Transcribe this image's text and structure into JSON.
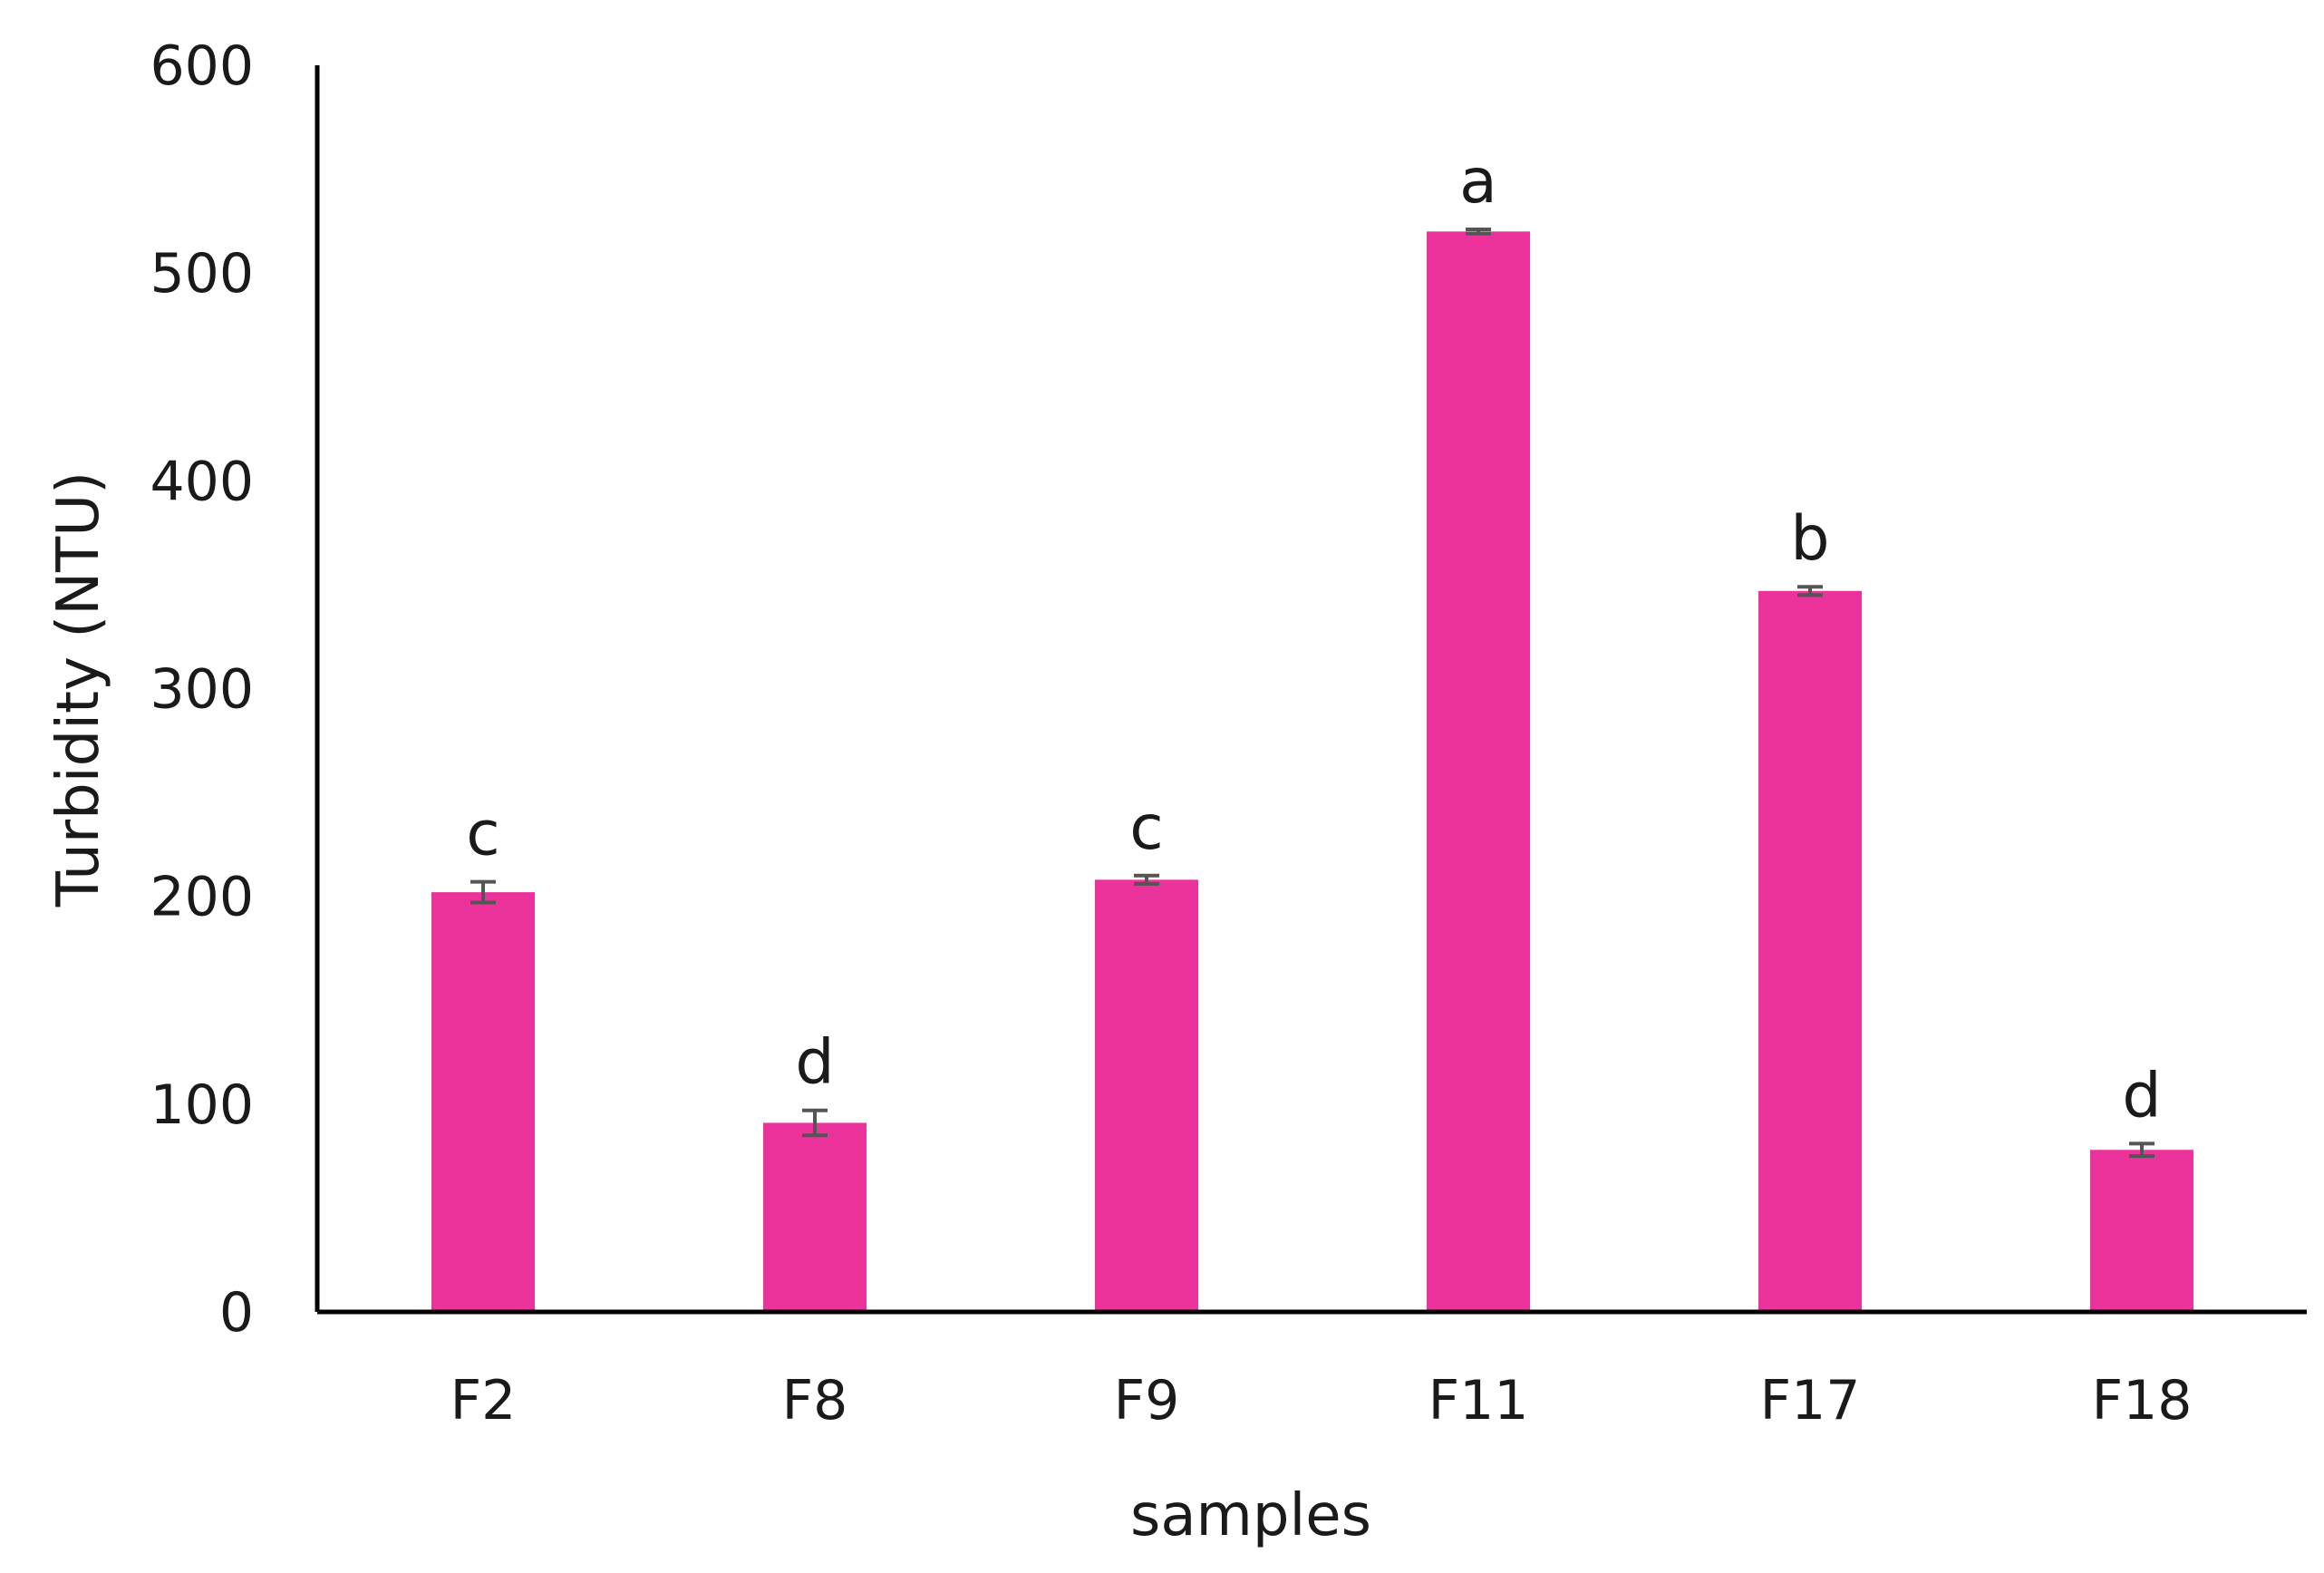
{
  "colors": {
    "bar": "#EC339B",
    "axis": "#000000",
    "error_bar": "#555555",
    "text": "#1a1a1a"
  },
  "chart_data": {
    "type": "bar",
    "categories": [
      "F2",
      "F8",
      "F9",
      "F11",
      "F17",
      "F18"
    ],
    "values": [
      202,
      91,
      208,
      520,
      347,
      78
    ],
    "errors": [
      5,
      6,
      2,
      1,
      2,
      3
    ],
    "significance_letters": [
      "c",
      "d",
      "c",
      "a",
      "b",
      "d"
    ],
    "xlabel": "samples",
    "ylabel": "Turbidity (NTU)",
    "ylim": [
      0,
      600
    ],
    "yticks": [
      0,
      100,
      200,
      300,
      400,
      500,
      600
    ],
    "grid": false,
    "legend": "none"
  }
}
